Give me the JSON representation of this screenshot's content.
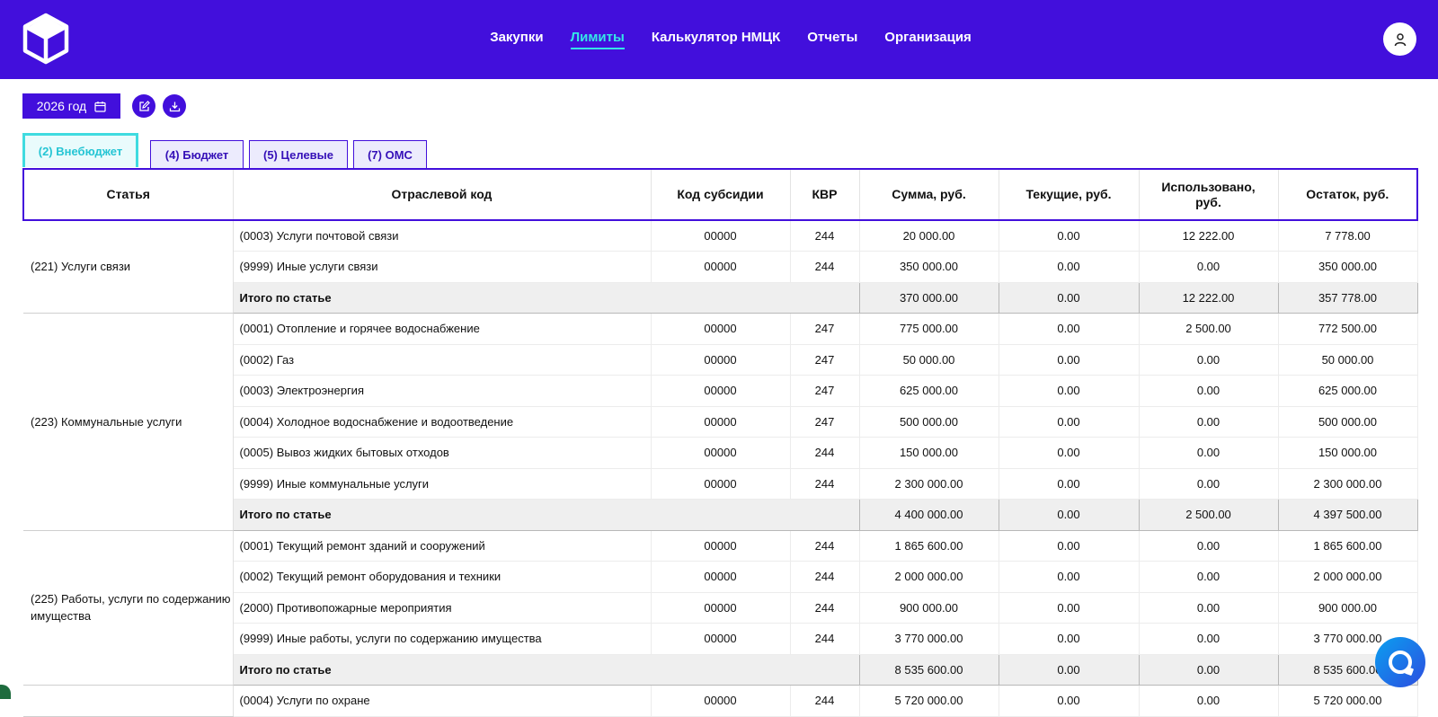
{
  "nav": {
    "items": [
      {
        "label": "Закупки",
        "active": false
      },
      {
        "label": "Лимиты",
        "active": true
      },
      {
        "label": "Калькулятор НМЦК",
        "active": false
      },
      {
        "label": "Отчеты",
        "active": false
      },
      {
        "label": "Организация",
        "active": false
      }
    ]
  },
  "toolbar": {
    "year_label": "2026 год"
  },
  "tabs": [
    {
      "label": "(2) Внебюджет",
      "active": true
    },
    {
      "label": "(4) Бюджет",
      "active": false
    },
    {
      "label": "(5) Целевые",
      "active": false
    },
    {
      "label": "(7) ОМС",
      "active": false
    }
  ],
  "table": {
    "headers": {
      "article": "Статья",
      "industry_code": "Отраслевой код",
      "subsidy_code": "Код субсидии",
      "kvr": "КВР",
      "sum": "Сумма, руб.",
      "current": "Текущие, руб.",
      "used_line1": "Использовано,",
      "used_line2": "руб.",
      "remainder": "Остаток, руб."
    },
    "groups": [
      {
        "article": "(221) Услуги связи",
        "rows": [
          [
            "(0003) Услуги почтовой связи",
            "00000",
            "244",
            "20 000.00",
            "0.00",
            "12 222.00",
            "7 778.00"
          ],
          [
            "(9999) Иные услуги связи",
            "00000",
            "244",
            "350 000.00",
            "0.00",
            "0.00",
            "350 000.00"
          ]
        ],
        "total": {
          "label": "Итого по статье",
          "values": [
            "370 000.00",
            "0.00",
            "12 222.00",
            "357 778.00"
          ]
        }
      },
      {
        "article": "(223) Коммунальные услуги",
        "rows": [
          [
            "(0001) Отопление и горячее водоснабжение",
            "00000",
            "247",
            "775 000.00",
            "0.00",
            "2 500.00",
            "772 500.00"
          ],
          [
            "(0002) Газ",
            "00000",
            "247",
            "50 000.00",
            "0.00",
            "0.00",
            "50 000.00"
          ],
          [
            "(0003) Электроэнергия",
            "00000",
            "247",
            "625 000.00",
            "0.00",
            "0.00",
            "625 000.00"
          ],
          [
            "(0004) Холодное водоснабжение и водоотведение",
            "00000",
            "247",
            "500 000.00",
            "0.00",
            "0.00",
            "500 000.00"
          ],
          [
            "(0005) Вывоз жидких бытовых отходов",
            "00000",
            "244",
            "150 000.00",
            "0.00",
            "0.00",
            "150 000.00"
          ],
          [
            "(9999) Иные коммунальные услуги",
            "00000",
            "244",
            "2 300 000.00",
            "0.00",
            "0.00",
            "2 300 000.00"
          ]
        ],
        "total": {
          "label": "Итого по статье",
          "values": [
            "4 400 000.00",
            "0.00",
            "2 500.00",
            "4 397 500.00"
          ]
        }
      },
      {
        "article": "(225) Работы, услуги по содержанию имущества",
        "rows": [
          [
            "(0001) Текущий ремонт зданий и сооружений",
            "00000",
            "244",
            "1 865 600.00",
            "0.00",
            "0.00",
            "1 865 600.00"
          ],
          [
            "(0002) Текущий ремонт оборудования и техники",
            "00000",
            "244",
            "2 000 000.00",
            "0.00",
            "0.00",
            "2 000 000.00"
          ],
          [
            "(2000) Противопожарные мероприятия",
            "00000",
            "244",
            "900 000.00",
            "0.00",
            "0.00",
            "900 000.00"
          ],
          [
            "(9999) Иные работы, услуги по содержанию имущества",
            "00000",
            "244",
            "3 770 000.00",
            "0.00",
            "0.00",
            "3 770 000.00"
          ]
        ],
        "total": {
          "label": "Итого по статье",
          "values": [
            "8 535 600.00",
            "0.00",
            "0.00",
            "8 535 600.00"
          ]
        }
      },
      {
        "article": "",
        "rows": [
          [
            "(0004) Услуги по охране",
            "00000",
            "244",
            "5 720 000.00",
            "0.00",
            "0.00",
            "5 720 000.00"
          ]
        ],
        "total": null
      }
    ]
  },
  "icons": {
    "logo": "cube-logo-icon",
    "user": "user-icon",
    "calendar": "calendar-icon",
    "edit": "edit-icon",
    "download": "download-icon",
    "chat": "chat-icon"
  },
  "colors": {
    "brand": "#420fdc",
    "accent": "#35e6e6"
  }
}
